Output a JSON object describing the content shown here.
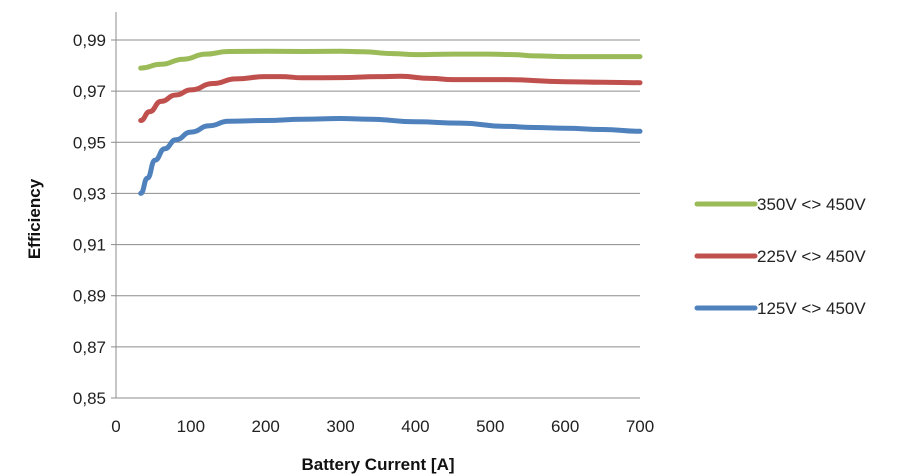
{
  "chart_data": {
    "type": "line",
    "xlabel": "Battery Current [A]",
    "ylabel": "Efficiency",
    "xlim": [
      0,
      700
    ],
    "ylim": [
      0.85,
      0.99
    ],
    "x_ticks": [
      0,
      100,
      200,
      300,
      400,
      500,
      600,
      700
    ],
    "y_ticks": [
      0.85,
      0.87,
      0.89,
      0.91,
      0.93,
      0.95,
      0.97,
      0.99
    ],
    "x_tick_labels": [
      "0",
      "100",
      "200",
      "300",
      "400",
      "500",
      "600",
      "700"
    ],
    "y_tick_labels": [
      "0,85",
      "0,87",
      "0,89",
      "0,91",
      "0,93",
      "0,95",
      "0,97",
      "0,99"
    ],
    "grid": "horizontal",
    "legend_position": "right",
    "series": [
      {
        "name": "350V <> 450V",
        "color": "#9BBB59",
        "points": [
          [
            33,
            0.979
          ],
          [
            60,
            0.9805
          ],
          [
            90,
            0.9825
          ],
          [
            120,
            0.9845
          ],
          [
            150,
            0.9855
          ],
          [
            200,
            0.9856
          ],
          [
            250,
            0.9855
          ],
          [
            300,
            0.9856
          ],
          [
            330,
            0.9854
          ],
          [
            370,
            0.9847
          ],
          [
            400,
            0.9843
          ],
          [
            450,
            0.9845
          ],
          [
            500,
            0.9845
          ],
          [
            530,
            0.9843
          ],
          [
            560,
            0.9838
          ],
          [
            600,
            0.9835
          ],
          [
            650,
            0.9835
          ],
          [
            700,
            0.9835
          ]
        ]
      },
      {
        "name": "225V <> 450V",
        "color": "#C0504D",
        "points": [
          [
            33,
            0.9585
          ],
          [
            45,
            0.962
          ],
          [
            60,
            0.966
          ],
          [
            80,
            0.9685
          ],
          [
            100,
            0.9705
          ],
          [
            130,
            0.973
          ],
          [
            160,
            0.9748
          ],
          [
            200,
            0.9757
          ],
          [
            220,
            0.9757
          ],
          [
            250,
            0.9752
          ],
          [
            300,
            0.9753
          ],
          [
            350,
            0.9757
          ],
          [
            380,
            0.9758
          ],
          [
            420,
            0.975
          ],
          [
            450,
            0.9745
          ],
          [
            520,
            0.9745
          ],
          [
            600,
            0.9737
          ],
          [
            650,
            0.9735
          ],
          [
            700,
            0.9733
          ]
        ]
      },
      {
        "name": "125V <> 450V",
        "color": "#4F81BD",
        "points": [
          [
            33,
            0.93
          ],
          [
            42,
            0.936
          ],
          [
            52,
            0.943
          ],
          [
            65,
            0.9475
          ],
          [
            80,
            0.951
          ],
          [
            100,
            0.954
          ],
          [
            125,
            0.9565
          ],
          [
            150,
            0.9582
          ],
          [
            200,
            0.9585
          ],
          [
            250,
            0.959
          ],
          [
            300,
            0.9593
          ],
          [
            340,
            0.959
          ],
          [
            400,
            0.958
          ],
          [
            460,
            0.9575
          ],
          [
            520,
            0.9562
          ],
          [
            560,
            0.9558
          ],
          [
            600,
            0.9555
          ],
          [
            650,
            0.955
          ],
          [
            700,
            0.9543
          ]
        ]
      }
    ]
  }
}
